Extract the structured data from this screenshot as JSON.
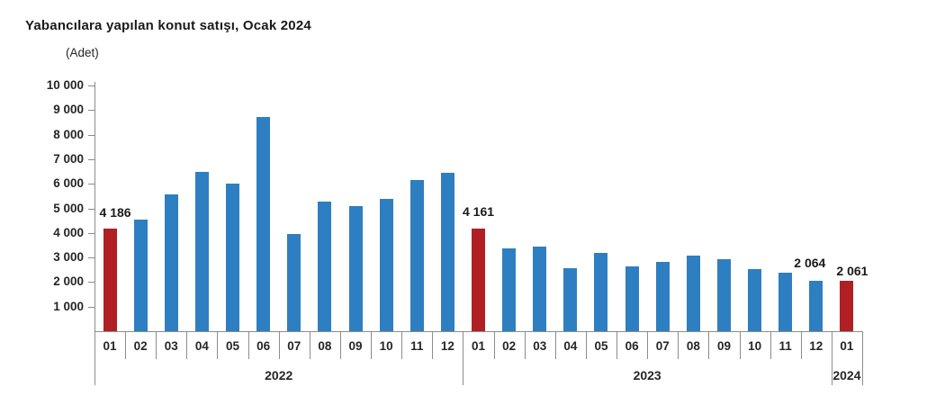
{
  "page": {
    "background_color": "#ffffff"
  },
  "chart_data": {
    "type": "bar",
    "title": "Yabancılara yapılan konut satışı, Ocak 2024",
    "unit_label": "(Adet)",
    "xlabel": "",
    "ylabel": "",
    "ylim": [
      0,
      10000
    ],
    "y_tick_step": 1000,
    "y_tick_labels": [
      "10 000",
      "9 000",
      "8 000",
      "7 000",
      "6 000",
      "5 000",
      "4 000",
      "3 000",
      "2 000",
      "1 000"
    ],
    "grid": false,
    "legend": "none",
    "bar_color": "#2e7fc1",
    "highlight_color": "#b01f24",
    "axis_color": "#8c8c8c",
    "text_color": "#262626",
    "groups": [
      {
        "year": "2022",
        "months": [
          "01",
          "02",
          "03",
          "04",
          "05",
          "06",
          "07",
          "08",
          "09",
          "10",
          "11",
          "12"
        ],
        "values": [
          4186,
          4560,
          5570,
          6500,
          6000,
          8700,
          3950,
          5280,
          5080,
          5380,
          6160,
          6450
        ],
        "highlight_months": [
          "01"
        ]
      },
      {
        "year": "2023",
        "months": [
          "01",
          "02",
          "03",
          "04",
          "05",
          "06",
          "07",
          "08",
          "09",
          "10",
          "11",
          "12"
        ],
        "values": [
          4161,
          3360,
          3450,
          2560,
          3200,
          2650,
          2830,
          3080,
          2940,
          2540,
          2380,
          2064
        ],
        "highlight_months": [
          "01"
        ]
      },
      {
        "year": "2024",
        "months": [
          "01"
        ],
        "values": [
          2061
        ],
        "highlight_months": [
          "01"
        ]
      }
    ],
    "data_labels": [
      {
        "year": "2022",
        "month": "01",
        "text": "4 186",
        "dx": 6,
        "gap": 11
      },
      {
        "year": "2023",
        "month": "01",
        "text": "4 161",
        "dx": 0,
        "gap": 12
      },
      {
        "year": "2023",
        "month": "12",
        "text": "2 064",
        "dx": -7,
        "gap": 13
      },
      {
        "year": "2024",
        "month": "01",
        "text": "2 061",
        "dx": 6,
        "gap": 4
      }
    ]
  }
}
